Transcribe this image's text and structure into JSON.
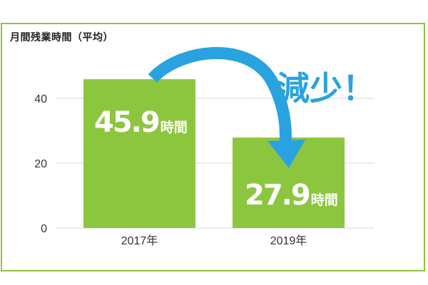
{
  "chart_data": {
    "type": "bar",
    "title": "月間残業時間（平均）",
    "categories": [
      "2017年",
      "2019年"
    ],
    "values": [
      45.9,
      27.9
    ],
    "value_labels": [
      {
        "number": "45.9",
        "unit": "時間"
      },
      {
        "number": "27.9",
        "unit": "時間"
      }
    ],
    "yticks": [
      0,
      20,
      40
    ],
    "ylim": [
      0,
      50
    ],
    "grid": true,
    "annotation": "減少！",
    "colors": {
      "bar": "#8cc63f",
      "arrow": "#29a3e0",
      "annotation": "#29a3e0",
      "frame": "#8cc63f",
      "grid": "#d7d7d7"
    }
  }
}
